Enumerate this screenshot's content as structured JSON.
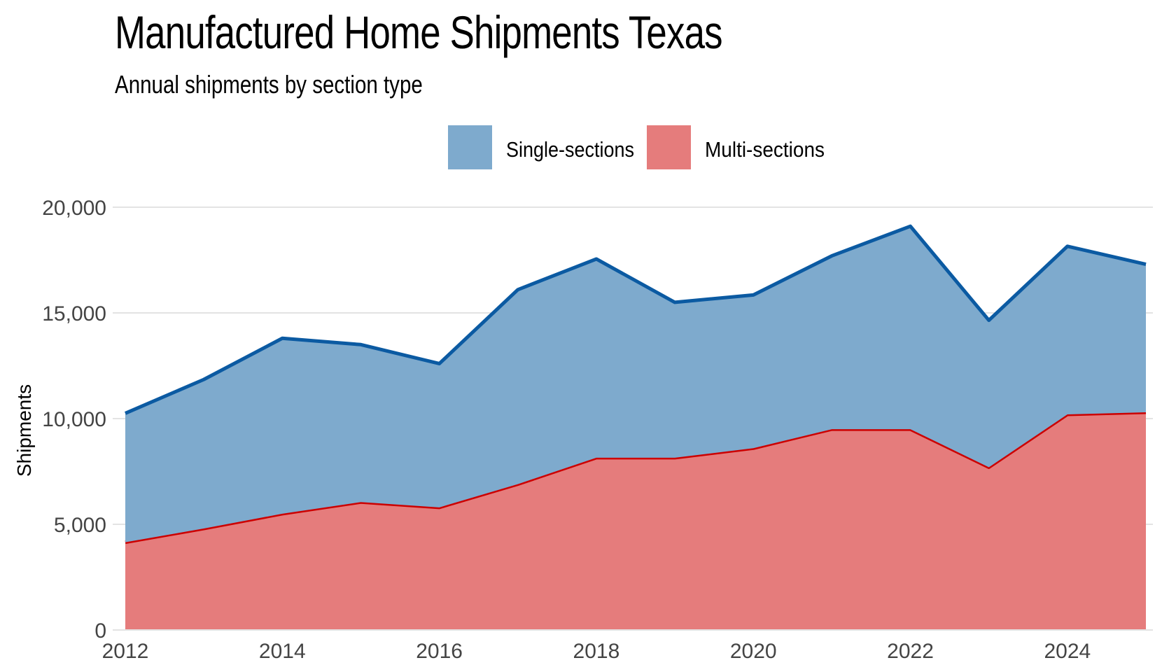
{
  "chart_data": {
    "type": "area",
    "stacked": true,
    "title": "Manufactured Home Shipments Texas",
    "subtitle": "Annual shipments by section type",
    "xlabel": "",
    "ylabel": "Shipments",
    "x": [
      2012,
      2013,
      2014,
      2015,
      2016,
      2017,
      2018,
      2019,
      2020,
      2021,
      2022,
      2023,
      2024,
      2025
    ],
    "x_ticks": [
      "2012",
      "2014",
      "2016",
      "2018",
      "2020",
      "2022",
      "2024"
    ],
    "y_ticks": [
      "0",
      "5,000",
      "10,000",
      "15,000",
      "20,000"
    ],
    "ylim": [
      0,
      20000
    ],
    "grid": "horizontal",
    "legend_position": "top",
    "series": [
      {
        "name": "Multi-sections",
        "color": "#cc0000",
        "fill": "#e57c7c",
        "values": [
          4150,
          4800,
          5500,
          6050,
          5800,
          6900,
          8150,
          8150,
          8600,
          9500,
          9500,
          7700,
          10200,
          10300
        ]
      },
      {
        "name": "Single-sections",
        "color": "#0b5aa2",
        "fill": "#7eaacd",
        "values": [
          6100,
          7050,
          8300,
          7450,
          6800,
          9200,
          9400,
          7350,
          7250,
          8200,
          9600,
          6950,
          7950,
          7000
        ]
      }
    ]
  },
  "legend": {
    "items": [
      {
        "label": "Single-sections",
        "color": "#7eaacd"
      },
      {
        "label": "Multi-sections",
        "color": "#e57c7c"
      }
    ]
  }
}
